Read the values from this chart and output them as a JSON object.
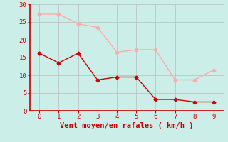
{
  "xlabel": "Vent moyen/en rafales ( km/h )",
  "x": [
    0,
    1,
    2,
    3,
    4,
    5,
    6,
    7,
    8,
    9
  ],
  "y_mean": [
    16.2,
    13.5,
    16.2,
    8.7,
    9.5,
    9.5,
    3.2,
    3.2,
    2.5,
    2.5
  ],
  "y_gust": [
    27.2,
    27.2,
    24.5,
    23.5,
    16.5,
    17.2,
    17.2,
    8.7,
    8.7,
    11.5
  ],
  "color_mean": "#cc0000",
  "color_gust": "#ffaaaa",
  "bg_color": "#cceee8",
  "grid_color": "#bbbbbb",
  "xlim": [
    -0.5,
    9.5
  ],
  "ylim": [
    0,
    30
  ],
  "yticks": [
    0,
    5,
    10,
    15,
    20,
    25,
    30
  ],
  "xticks": [
    0,
    1,
    2,
    3,
    4,
    5,
    6,
    7,
    8,
    9
  ],
  "tick_color": "#cc0000",
  "label_color": "#cc0000",
  "spine_color": "#cc0000",
  "axis_linewidth": 1.2,
  "tick_labelsize": 6.5,
  "xlabel_fontsize": 7.5
}
